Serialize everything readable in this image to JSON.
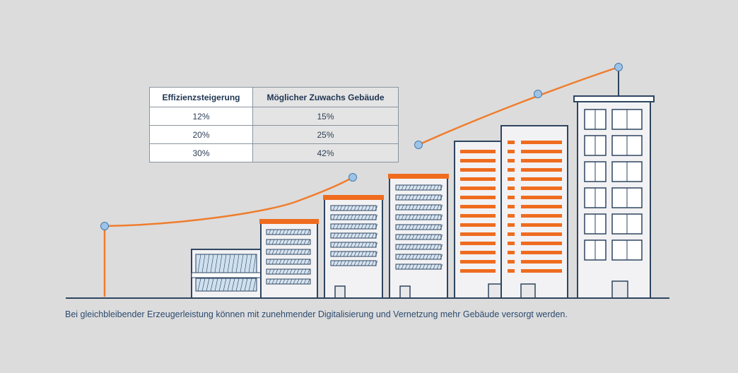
{
  "table": {
    "headers": [
      "Effizienzsteigerung",
      "Möglicher Zuwachs Gebäude"
    ],
    "rows": [
      [
        "12%",
        "15%"
      ],
      [
        "20%",
        "25%"
      ],
      [
        "30%",
        "42%"
      ]
    ]
  },
  "caption": "Bei gleichbleibender Erzeugerleistung können mit zunehmender Digitalisierung und Vernetzung mehr Gebäude versorgt werden.",
  "colors": {
    "background": "#dcdcdc",
    "line": "#ef7d2d",
    "accent_roof": "#ef6c1f",
    "outline": "#2e4560",
    "building_fill": "#f2f2f4",
    "marker": "#9cc4e8"
  }
}
